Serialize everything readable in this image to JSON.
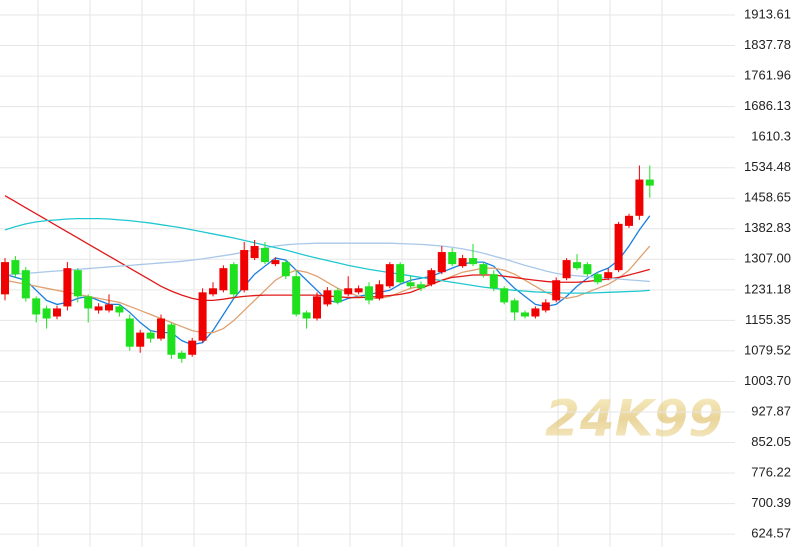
{
  "chart_data": {
    "type": "candlestick",
    "watermark": "24K99",
    "ylim": [
      592.6,
      1950.9
    ],
    "yticks": [
      1913.61,
      1837.78,
      1761.96,
      1686.13,
      1610.3,
      1534.48,
      1458.65,
      1382.83,
      {
        "value": 1307,
        "label": "1307.00"
      },
      1231.18,
      1155.35,
      1079.52,
      {
        "value": 1003.7,
        "label": "1003.70"
      },
      927.87,
      852.05,
      776.22,
      700.39,
      624.57
    ],
    "grid": true,
    "up_color": "#f00000",
    "down_color": "#1ee01e",
    "open": [
      1220,
      1305,
      1280,
      1210,
      1185,
      1165,
      1190,
      1280,
      1215,
      1180,
      1180,
      1190,
      1160,
      1090,
      1125,
      1110,
      1145,
      1075,
      1070,
      1105,
      1220,
      1230,
      1295,
      1230,
      1310,
      1335,
      1295,
      1300,
      1265,
      1175,
      1160,
      1195,
      1230,
      1220,
      1225,
      1240,
      1210,
      1240,
      1295,
      1250,
      1245,
      1245,
      1275,
      1325,
      1290,
      1310,
      1295,
      1270,
      1235,
      1205,
      1175,
      1165,
      1180,
      1205,
      1260,
      1300,
      1295,
      1270,
      1260,
      1280,
      1390,
      1415,
      1505
    ],
    "close": [
      1300,
      1270,
      1210,
      1170,
      1160,
      1185,
      1285,
      1215,
      1185,
      1190,
      1195,
      1175,
      1090,
      1125,
      1110,
      1160,
      1070,
      1060,
      1105,
      1225,
      1235,
      1285,
      1220,
      1330,
      1340,
      1300,
      1305,
      1265,
      1170,
      1160,
      1215,
      1230,
      1200,
      1235,
      1235,
      1205,
      1245,
      1295,
      1250,
      1240,
      1235,
      1280,
      1325,
      1295,
      1310,
      1295,
      1270,
      1235,
      1200,
      1175,
      1165,
      1185,
      1200,
      1255,
      1305,
      1285,
      1270,
      1250,
      1275,
      1395,
      1415,
      1505,
      1490
    ],
    "high": [
      1310,
      1315,
      1288,
      1215,
      1192,
      1192,
      1300,
      1285,
      1220,
      1198,
      1220,
      1196,
      1170,
      1132,
      1130,
      1170,
      1150,
      1080,
      1112,
      1235,
      1250,
      1292,
      1300,
      1350,
      1355,
      1350,
      1312,
      1305,
      1280,
      1180,
      1225,
      1238,
      1236,
      1265,
      1242,
      1250,
      1255,
      1300,
      1300,
      1265,
      1252,
      1285,
      1340,
      1335,
      1318,
      1345,
      1300,
      1280,
      1240,
      1210,
      1180,
      1190,
      1208,
      1262,
      1310,
      1320,
      1300,
      1275,
      1285,
      1400,
      1420,
      1540,
      1540
    ],
    "low": [
      1205,
      1262,
      1202,
      1150,
      1135,
      1158,
      1180,
      1200,
      1150,
      1172,
      1175,
      1165,
      1080,
      1075,
      1100,
      1105,
      1060,
      1050,
      1065,
      1100,
      1215,
      1225,
      1212,
      1225,
      1305,
      1295,
      1290,
      1258,
      1165,
      1135,
      1155,
      1190,
      1195,
      1215,
      1220,
      1195,
      1205,
      1235,
      1245,
      1235,
      1228,
      1240,
      1270,
      1290,
      1286,
      1290,
      1262,
      1228,
      1195,
      1155,
      1160,
      1160,
      1175,
      1200,
      1255,
      1280,
      1265,
      1245,
      1255,
      1275,
      1385,
      1405,
      1460
    ],
    "lines": [
      {
        "color": "#1a7fe0",
        "values": [
          1270,
          1262,
          1255,
          1230,
          1205,
          1195,
          1200,
          1210,
          1215,
          1205,
          1195,
          1195,
          1175,
          1150,
          1130,
          1125,
          1125,
          1105,
          1095,
          1100,
          1130,
          1170,
          1210,
          1240,
          1270,
          1290,
          1310,
          1305,
          1280,
          1255,
          1230,
          1205,
          1200,
          1210,
          1215,
          1220,
          1225,
          1230,
          1245,
          1255,
          1260,
          1265,
          1275,
          1285,
          1295,
          1300,
          1300,
          1290,
          1260,
          1235,
          1215,
          1195,
          1190,
          1195,
          1215,
          1240,
          1260,
          1275,
          1285,
          1305,
          1340,
          1380,
          1415
        ]
      },
      {
        "color": "#e0a070",
        "values": [
          1255,
          1250,
          1245,
          1240,
          1235,
          1230,
          1225,
          1220,
          1215,
          1210,
          1205,
          1200,
          1190,
          1180,
          1170,
          1160,
          1150,
          1140,
          1130,
          1125,
          1125,
          1135,
          1155,
          1180,
          1205,
          1230,
          1255,
          1270,
          1280,
          1275,
          1265,
          1250,
          1235,
          1225,
          1215,
          1210,
          1210,
          1215,
          1225,
          1235,
          1240,
          1245,
          1255,
          1265,
          1275,
          1280,
          1285,
          1285,
          1280,
          1270,
          1255,
          1240,
          1225,
          1215,
          1210,
          1215,
          1225,
          1235,
          1245,
          1260,
          1280,
          1310,
          1340
        ]
      },
      {
        "color": "#e01818",
        "values": [
          1465,
          1450,
          1435,
          1420,
          1405,
          1390,
          1375,
          1360,
          1345,
          1330,
          1315,
          1300,
          1285,
          1270,
          1255,
          1240,
          1228,
          1218,
          1210,
          1205,
          1205,
          1208,
          1212,
          1215,
          1217,
          1218,
          1218,
          1218,
          1218,
          1218,
          1218,
          1216,
          1214,
          1212,
          1212,
          1213,
          1215,
          1217,
          1220,
          1225,
          1235,
          1245,
          1255,
          1262,
          1265,
          1268,
          1268,
          1268,
          1265,
          1262,
          1258,
          1255,
          1252,
          1250,
          1250,
          1250,
          1252,
          1255,
          1258,
          1262,
          1268,
          1275,
          1282
        ]
      },
      {
        "color": "#a8c8e8",
        "values": [
          1268,
          1270,
          1272,
          1274,
          1276,
          1278,
          1280,
          1282,
          1284,
          1286,
          1288,
          1290,
          1292,
          1294,
          1296,
          1298,
          1300,
          1302,
          1305,
          1308,
          1312,
          1316,
          1320,
          1325,
          1330,
          1335,
          1340,
          1343,
          1345,
          1346,
          1347,
          1347,
          1347,
          1347,
          1347,
          1347,
          1347,
          1347,
          1346,
          1345,
          1344,
          1342,
          1340,
          1337,
          1333,
          1328,
          1322,
          1315,
          1308,
          1300,
          1292,
          1285,
          1278,
          1272,
          1268,
          1266,
          1264,
          1262,
          1260,
          1258,
          1256,
          1254,
          1252
        ]
      },
      {
        "color": "#20c8d0",
        "values": [
          1380,
          1388,
          1395,
          1400,
          1403,
          1405,
          1407,
          1408,
          1408,
          1408,
          1407,
          1405,
          1403,
          1400,
          1397,
          1393,
          1389,
          1385,
          1380,
          1375,
          1370,
          1365,
          1360,
          1354,
          1348,
          1342,
          1336,
          1330,
          1323,
          1316,
          1310,
          1304,
          1298,
          1292,
          1287,
          1282,
          1278,
          1274,
          1270,
          1266,
          1262,
          1258,
          1254,
          1250,
          1246,
          1242,
          1238,
          1235,
          1232,
          1230,
          1228,
          1226,
          1225,
          1224,
          1223,
          1223,
          1223,
          1224,
          1225,
          1226,
          1227,
          1228,
          1230
        ]
      }
    ]
  }
}
